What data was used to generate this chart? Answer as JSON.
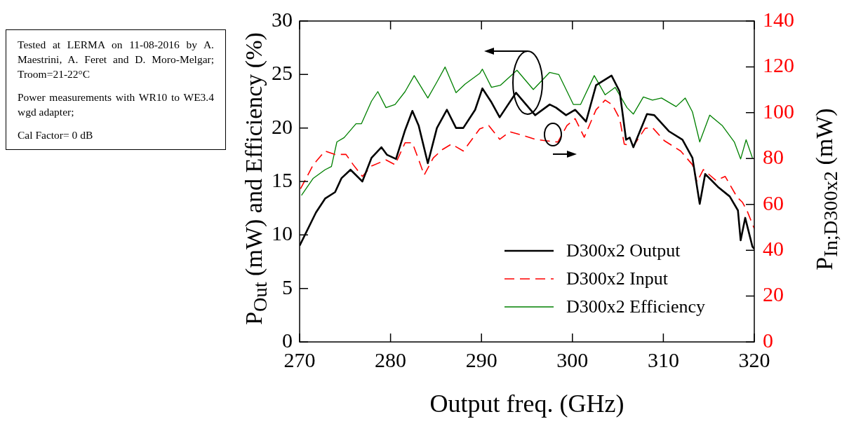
{
  "chart_data": {
    "type": "line",
    "xlabel": "Output freq. (GHz)",
    "ylabel": "P$_{Out}$ (mW) and Efficiency (%)",
    "y2label": "P$_{In;D300x2}$ (mW)",
    "xlim": [
      270,
      320
    ],
    "xticks": [
      270,
      280,
      290,
      300,
      310,
      320
    ],
    "ylim": [
      0,
      30
    ],
    "yticks": [
      0,
      5,
      10,
      15,
      20,
      25,
      30
    ],
    "y2lim": [
      0,
      140
    ],
    "y2ticks": [
      0,
      20,
      40,
      60,
      80,
      100,
      120,
      140
    ],
    "grid": false,
    "legend": "bottom right",
    "marker": "none",
    "annotations": [
      "Tested at LERMA on 11-08-2016 by A. Maestrini, A. Feret and D. Moro-Melgar; Troom=21-22°C",
      "Power measurements with WR10 to WE3.4 wgd adapter;",
      "Cal Factor= 0 dB"
    ],
    "series": [
      {
        "name": "D300x2 Output",
        "color": "#000000",
        "line_style": "solid",
        "x": [
          270.0,
          271.8,
          272.8,
          273.9,
          274.6,
          275.6,
          276.9,
          277.9,
          279.0,
          279.6,
          280.6,
          281.6,
          282.4,
          283.1,
          284.1,
          285.1,
          286.2,
          287.2,
          288.0,
          289.3,
          290.1,
          291.1,
          292.0,
          293.8,
          294.9,
          295.9,
          297.5,
          298.2,
          299.3,
          300.3,
          301.5,
          302.6,
          304.3,
          305.2,
          305.9,
          306.3,
          306.7,
          308.2,
          309.0,
          310.6,
          312.1,
          313.2,
          314.0,
          314.6,
          316.0,
          317.3,
          318.2,
          318.5,
          319.0,
          319.8,
          320.0
        ],
        "values": [
          9.0,
          12.1,
          13.4,
          14.0,
          15.3,
          16.1,
          15.0,
          17.2,
          18.2,
          17.5,
          17.1,
          19.8,
          21.6,
          20.2,
          16.7,
          20.0,
          21.7,
          20.0,
          20.0,
          21.7,
          23.7,
          22.4,
          21.0,
          23.3,
          22.2,
          21.2,
          22.2,
          21.9,
          21.2,
          21.7,
          20.6,
          24.0,
          24.9,
          23.4,
          18.9,
          19.1,
          18.2,
          21.3,
          21.2,
          19.7,
          18.9,
          17.2,
          12.9,
          15.7,
          14.5,
          13.6,
          12.3,
          9.5,
          11.6,
          8.9,
          8.7
        ]
      },
      {
        "name": "D300x2 Input",
        "color": "#ff0000",
        "line_style": "dashed",
        "axis": "y2",
        "x": [
          270.1,
          271.5,
          272.8,
          273.9,
          275.1,
          275.9,
          276.9,
          277.9,
          279.5,
          280.5,
          281.6,
          282.4,
          283.1,
          283.7,
          284.7,
          285.7,
          286.7,
          288.0,
          289.8,
          290.8,
          292.0,
          293.1,
          294.5,
          295.9,
          297.0,
          298.4,
          299.4,
          300.3,
          301.3,
          302.6,
          303.6,
          304.4,
          305.2,
          305.7,
          306.7,
          308.0,
          308.8,
          310.1,
          311.9,
          313.2,
          313.7,
          314.4,
          315.8,
          316.8,
          318.1,
          318.7,
          319.2,
          319.8,
          320.0
        ],
        "values": [
          66.8,
          77.3,
          83.3,
          81.8,
          81.8,
          77.3,
          72.2,
          76.7,
          79.4,
          77.3,
          86.9,
          86.9,
          79.4,
          72.8,
          80.3,
          83.9,
          86.3,
          83.3,
          92.9,
          94.4,
          88.4,
          91.7,
          90.2,
          88.4,
          87.8,
          87.2,
          94.4,
          97.4,
          89.3,
          101.3,
          105.5,
          103.4,
          97.4,
          86.3,
          85.4,
          93.2,
          93.5,
          87.8,
          83.3,
          77.3,
          69.8,
          75.2,
          70.4,
          72.2,
          63.2,
          60.9,
          57.3,
          51.3,
          49.5
        ]
      },
      {
        "name": "D300x2 Efficiency",
        "color": "#008000",
        "line_style": "solid",
        "x": [
          270.2,
          271.5,
          272.8,
          273.5,
          274.1,
          274.9,
          276.2,
          276.8,
          277.9,
          278.6,
          279.5,
          280.5,
          281.6,
          282.6,
          284.1,
          285.1,
          286.0,
          287.2,
          288.2,
          289.8,
          290.1,
          291.1,
          292.1,
          293.9,
          295.7,
          297.5,
          298.5,
          300.1,
          300.9,
          302.4,
          303.6,
          304.7,
          306.0,
          306.7,
          307.8,
          308.8,
          309.8,
          311.4,
          312.4,
          313.2,
          314.0,
          315.1,
          316.5,
          317.8,
          318.5,
          319.1,
          319.8
        ],
        "values": [
          13.7,
          15.3,
          16.1,
          16.4,
          18.7,
          19.1,
          20.4,
          20.4,
          22.5,
          23.4,
          21.9,
          22.2,
          23.4,
          24.9,
          22.8,
          24.3,
          25.7,
          23.3,
          24.1,
          25.1,
          25.5,
          23.8,
          24.0,
          25.4,
          23.6,
          25.2,
          25.0,
          22.2,
          22.2,
          24.9,
          23.1,
          23.8,
          21.9,
          21.3,
          22.9,
          22.6,
          22.8,
          22.0,
          22.8,
          21.5,
          18.7,
          21.2,
          20.2,
          18.7,
          17.1,
          18.9,
          17.2
        ]
      }
    ]
  }
}
